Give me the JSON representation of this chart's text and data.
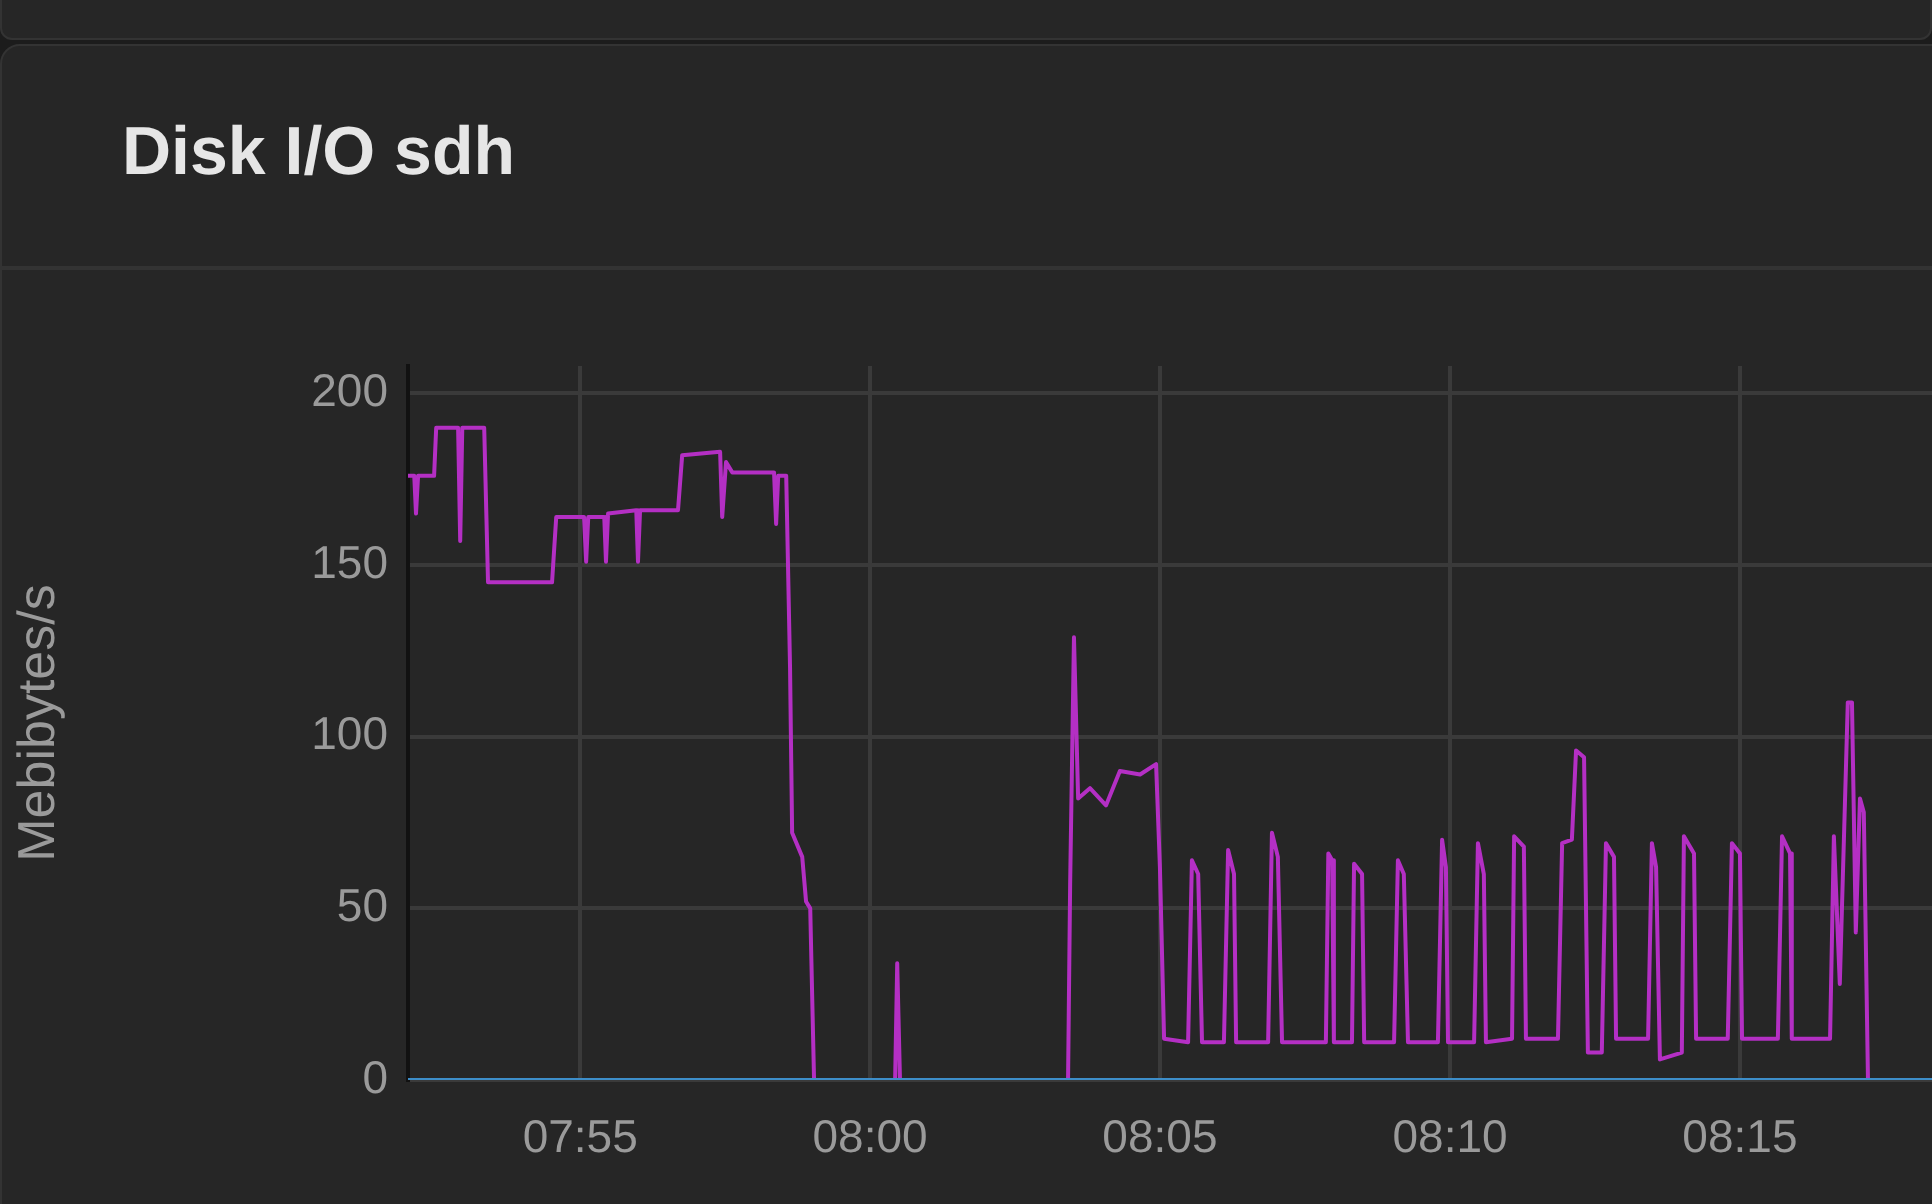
{
  "chart_data": {
    "type": "line",
    "title": "Disk I/O sdh",
    "ylabel": "Mebibytes/s",
    "xlim": [
      7.8672,
      8.3052
    ],
    "ylim": [
      0,
      208
    ],
    "xticks": [
      {
        "value": 7.9167,
        "label": "07:55"
      },
      {
        "value": 8.0,
        "label": "08:00"
      },
      {
        "value": 8.0833,
        "label": "08:05"
      },
      {
        "value": 8.1667,
        "label": "08:10"
      },
      {
        "value": 8.25,
        "label": "08:15"
      }
    ],
    "yticks": [
      0,
      50,
      100,
      150,
      200
    ],
    "grid": true,
    "legend": false,
    "marker": "none",
    "line_style": "solid",
    "series": [
      {
        "color": "#3d8ec9",
        "x": [
          7.8672,
          8.3052
        ],
        "values": [
          0,
          0
        ]
      },
      {
        "color": "#b42fc4",
        "x": [
          7.8672,
          7.869,
          7.8695,
          7.8701,
          7.8747,
          7.8753,
          7.8816,
          7.8822,
          7.8828,
          7.8891,
          7.8902,
          7.9086,
          7.9098,
          7.9178,
          7.9184,
          7.919,
          7.9236,
          7.9241,
          7.9247,
          7.9328,
          7.9333,
          7.9339,
          7.9448,
          7.946,
          7.9569,
          7.9575,
          7.9586,
          7.9604,
          7.9724,
          7.973,
          7.9736,
          7.9759,
          7.977,
          7.9776,
          7.9805,
          7.9816,
          7.9828,
          7.9839,
          8.0072,
          8.0078,
          8.0086,
          8.0569,
          8.0575,
          8.0586,
          8.0598,
          8.0632,
          8.0678,
          8.0718,
          8.0776,
          8.0822,
          8.0833,
          8.0845,
          8.0914,
          8.0925,
          8.0943,
          8.0954,
          8.1017,
          8.1029,
          8.1046,
          8.1052,
          8.1144,
          8.1155,
          8.1172,
          8.1184,
          8.131,
          8.1317,
          8.1328,
          8.1333,
          8.1385,
          8.1391,
          8.1414,
          8.142,
          8.1506,
          8.1517,
          8.1534,
          8.1546,
          8.1632,
          8.1644,
          8.1655,
          8.1661,
          8.1736,
          8.1747,
          8.1764,
          8.177,
          8.1845,
          8.1851,
          8.1879,
          8.1885,
          8.1977,
          8.1989,
          8.2017,
          8.2029,
          8.2052,
          8.2063,
          8.2103,
          8.2115,
          8.2138,
          8.2144,
          8.2236,
          8.2247,
          8.2259,
          8.227,
          8.2333,
          8.2339,
          8.2368,
          8.2374,
          8.2465,
          8.2477,
          8.25,
          8.2506,
          8.2609,
          8.2621,
          8.2644,
          8.2649,
          8.2759,
          8.277,
          8.2787,
          8.281,
          8.2822,
          8.2833,
          8.2845,
          8.2856,
          8.2868,
          8.3052
        ],
        "values": [
          176,
          176,
          165,
          176,
          176,
          190,
          190,
          157,
          190,
          190,
          145,
          145,
          164,
          164,
          151,
          164,
          164,
          151,
          165,
          166,
          151,
          166,
          166,
          182,
          183,
          164,
          180,
          177,
          177,
          162,
          176,
          176,
          120,
          72,
          65,
          52,
          50,
          0,
          0,
          34,
          0,
          0,
          57,
          129,
          82,
          85,
          80,
          90,
          89,
          92,
          62,
          12,
          11,
          64,
          60,
          11,
          11,
          67,
          60,
          11,
          11,
          72,
          65,
          11,
          11,
          66,
          64,
          11,
          11,
          63,
          60,
          11,
          11,
          64,
          60,
          11,
          11,
          70,
          62,
          11,
          11,
          69,
          60,
          11,
          12,
          71,
          68,
          12,
          12,
          69,
          70,
          96,
          94,
          8,
          8,
          69,
          65,
          12,
          12,
          69,
          62,
          6,
          8,
          71,
          66,
          12,
          12,
          69,
          66,
          12,
          12,
          71,
          66,
          12,
          12,
          71,
          28,
          110,
          110,
          43,
          82,
          78,
          0,
          0
        ]
      }
    ]
  }
}
